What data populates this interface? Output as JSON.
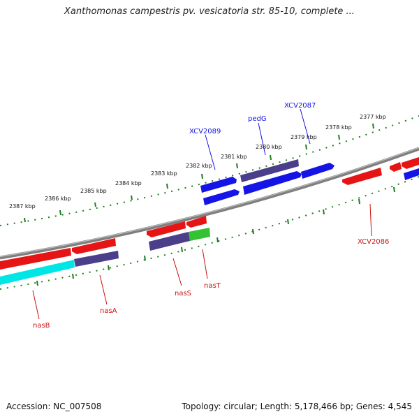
{
  "title": "Xanthomonas campestris pv. vesicatoria str. 85-10, complete ...",
  "footer": {
    "accession": "Accession: NC_007508",
    "summary": "Topology: circular; Length: 5,178,466 bp; Genes: 4,545"
  },
  "colors": {
    "backbone": "#7f7f7f",
    "ruler": "#1e7d1e",
    "forward_gene": "#1414e6",
    "forward_gene_alt": "#4b3f8c",
    "reverse_gene": "#e61414",
    "reverse_gene_alt": "#4b3f8c",
    "rna": "#33c233",
    "trna": "#00e6e6",
    "forward_label": "#1414e6",
    "reverse_label": "#cc1111"
  },
  "scale": {
    "tick_labels": [
      "2377 kbp",
      "2378 kbp",
      "2379 kbp",
      "2380 kbp",
      "2381 kbp",
      "2382 kbp",
      "2383 kbp",
      "2384 kbp",
      "2385 kbp",
      "2386 kbp",
      "2387 kbp"
    ]
  },
  "genes": {
    "forward": [
      {
        "label": "XCV2089"
      },
      {
        "label": "pedG"
      },
      {
        "label": "XCV2087"
      }
    ],
    "reverse": [
      {
        "label": "XCV2086"
      },
      {
        "label": "nasT"
      },
      {
        "label": "nasS"
      },
      {
        "label": "nasA"
      },
      {
        "label": "nasB"
      }
    ]
  }
}
